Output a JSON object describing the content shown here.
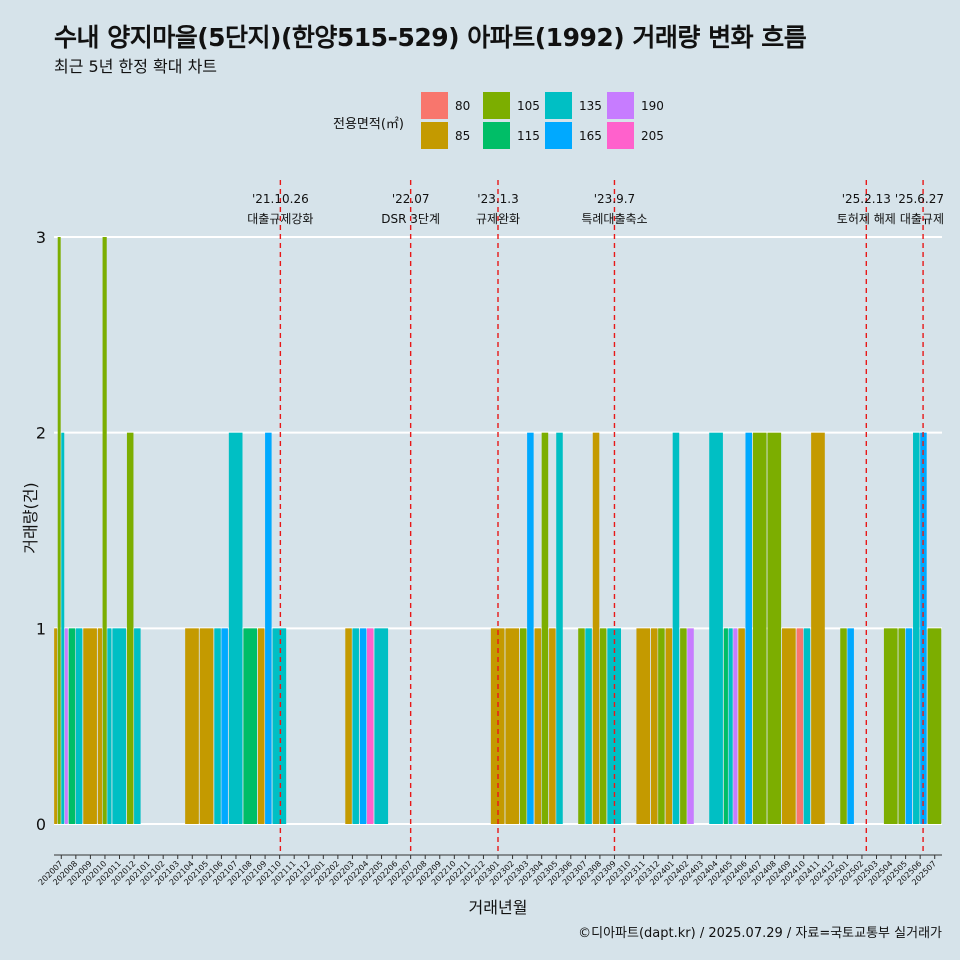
{
  "title": "수내 양지마을(5단지)(한양515-529) 아파트(1992) 거래량 변화 흐름",
  "subtitle": "최근 5년 한정 확대 차트",
  "footer": "©디아파트(dapt.kr) / 2025.07.29 / 자료=국토교통부 실거래가",
  "chart_data": {
    "type": "bar",
    "xlabel": "거래년월",
    "ylabel": "거래량(건)",
    "ylim": [
      0,
      3
    ],
    "yticks": [
      0,
      1,
      2,
      3
    ],
    "legend_title": "전용면적(㎡)",
    "legend": [
      {
        "name": "80",
        "color": "#F8766D"
      },
      {
        "name": "85",
        "color": "#C49A00"
      },
      {
        "name": "105",
        "color": "#7CAE00"
      },
      {
        "name": "115",
        "color": "#00BE67"
      },
      {
        "name": "135",
        "color": "#00BFC4"
      },
      {
        "name": "165",
        "color": "#00A9FF"
      },
      {
        "name": "190",
        "color": "#C77CFF"
      },
      {
        "name": "205",
        "color": "#FF61CC"
      }
    ],
    "categories": [
      "202007",
      "202008",
      "202009",
      "202010",
      "202011",
      "202012",
      "202101",
      "202102",
      "202103",
      "202104",
      "202105",
      "202106",
      "202107",
      "202108",
      "202109",
      "202110",
      "202111",
      "202112",
      "202201",
      "202202",
      "202203",
      "202204",
      "202205",
      "202206",
      "202207",
      "202208",
      "202209",
      "202210",
      "202211",
      "202212",
      "202301",
      "202302",
      "202303",
      "202304",
      "202305",
      "202306",
      "202307",
      "202308",
      "202309",
      "202310",
      "202311",
      "202312",
      "202401",
      "202402",
      "202403",
      "202404",
      "202405",
      "202406",
      "202407",
      "202408",
      "202409",
      "202410",
      "202411",
      "202412",
      "202501",
      "202502",
      "202503",
      "202504",
      "202505",
      "202506",
      "202507"
    ],
    "values": [
      {
        "month": "202007",
        "area": "85",
        "count": 1
      },
      {
        "month": "202007",
        "area": "105",
        "count": 3
      },
      {
        "month": "202007",
        "area": "135",
        "count": 2
      },
      {
        "month": "202007",
        "area": "190",
        "count": 1
      },
      {
        "month": "202008",
        "area": "115",
        "count": 1
      },
      {
        "month": "202008",
        "area": "135",
        "count": 1
      },
      {
        "month": "202009",
        "area": "85",
        "count": 1
      },
      {
        "month": "202010",
        "area": "85",
        "count": 1
      },
      {
        "month": "202010",
        "area": "105",
        "count": 3
      },
      {
        "month": "202010",
        "area": "135",
        "count": 1
      },
      {
        "month": "202011",
        "area": "135",
        "count": 1
      },
      {
        "month": "202012",
        "area": "105",
        "count": 2
      },
      {
        "month": "202012",
        "area": "135",
        "count": 1
      },
      {
        "month": "202104",
        "area": "85",
        "count": 1
      },
      {
        "month": "202105",
        "area": "85",
        "count": 1
      },
      {
        "month": "202106",
        "area": "135",
        "count": 1
      },
      {
        "month": "202106",
        "area": "165",
        "count": 1
      },
      {
        "month": "202107",
        "area": "135",
        "count": 2
      },
      {
        "month": "202108",
        "area": "115",
        "count": 1
      },
      {
        "month": "202109",
        "area": "85",
        "count": 1
      },
      {
        "month": "202109",
        "area": "165",
        "count": 2
      },
      {
        "month": "202110",
        "area": "135",
        "count": 1
      },
      {
        "month": "202203",
        "area": "85",
        "count": 1
      },
      {
        "month": "202203",
        "area": "135",
        "count": 1
      },
      {
        "month": "202204",
        "area": "165",
        "count": 1
      },
      {
        "month": "202204",
        "area": "205",
        "count": 1
      },
      {
        "month": "202205",
        "area": "135",
        "count": 1
      },
      {
        "month": "202301",
        "area": "85",
        "count": 1
      },
      {
        "month": "202302",
        "area": "85",
        "count": 1
      },
      {
        "month": "202303",
        "area": "105",
        "count": 1
      },
      {
        "month": "202303",
        "area": "165",
        "count": 2
      },
      {
        "month": "202304",
        "area": "85",
        "count": 1
      },
      {
        "month": "202304",
        "area": "105",
        "count": 2
      },
      {
        "month": "202305",
        "area": "85",
        "count": 1
      },
      {
        "month": "202305",
        "area": "135",
        "count": 2
      },
      {
        "month": "202307",
        "area": "105",
        "count": 1
      },
      {
        "month": "202307",
        "area": "135",
        "count": 1
      },
      {
        "month": "202308",
        "area": "85",
        "count": 2
      },
      {
        "month": "202308",
        "area": "105",
        "count": 1
      },
      {
        "month": "202309",
        "area": "135",
        "count": 1
      },
      {
        "month": "202311",
        "area": "85",
        "count": 1
      },
      {
        "month": "202312",
        "area": "85",
        "count": 1
      },
      {
        "month": "202312",
        "area": "105",
        "count": 1
      },
      {
        "month": "202401",
        "area": "85",
        "count": 1
      },
      {
        "month": "202401",
        "area": "135",
        "count": 2
      },
      {
        "month": "202402",
        "area": "105",
        "count": 1
      },
      {
        "month": "202402",
        "area": "190",
        "count": 1
      },
      {
        "month": "202404",
        "area": "135",
        "count": 2
      },
      {
        "month": "202405",
        "area": "115",
        "count": 1
      },
      {
        "month": "202405",
        "area": "135",
        "count": 1
      },
      {
        "month": "202405",
        "area": "190",
        "count": 1
      },
      {
        "month": "202406",
        "area": "85",
        "count": 1
      },
      {
        "month": "202406",
        "area": "165",
        "count": 2
      },
      {
        "month": "202407",
        "area": "105",
        "count": 2
      },
      {
        "month": "202408",
        "area": "105",
        "count": 2
      },
      {
        "month": "202409",
        "area": "85",
        "count": 1
      },
      {
        "month": "202410",
        "area": "80",
        "count": 1
      },
      {
        "month": "202410",
        "area": "135",
        "count": 1
      },
      {
        "month": "202411",
        "area": "85",
        "count": 2
      },
      {
        "month": "202501",
        "area": "105",
        "count": 1
      },
      {
        "month": "202501",
        "area": "165",
        "count": 1
      },
      {
        "month": "202504",
        "area": "105",
        "count": 1
      },
      {
        "month": "202505",
        "area": "105",
        "count": 1
      },
      {
        "month": "202505",
        "area": "165",
        "count": 1
      },
      {
        "month": "202506",
        "area": "135",
        "count": 2
      },
      {
        "month": "202506",
        "area": "165",
        "count": 2
      },
      {
        "month": "202507",
        "area": "105",
        "count": 1
      }
    ],
    "events": [
      {
        "date": "'21.10.26",
        "label": "대출규제강화",
        "x": 15.55
      },
      {
        "date": "'22.07",
        "label": "DSR 3단계",
        "x": 24.5
      },
      {
        "date": "'23.1.3",
        "label": "규제완화",
        "x": 30.5
      },
      {
        "date": "'23.9.7",
        "label": "특례대출축소",
        "x": 38.5
      },
      {
        "date": "'25.2.13",
        "label": "토허제 해제",
        "x": 55.8
      },
      {
        "date": "'25.6.27",
        "label": "대출규제",
        "x": 59.7
      }
    ],
    "event_color": "#E81818"
  }
}
